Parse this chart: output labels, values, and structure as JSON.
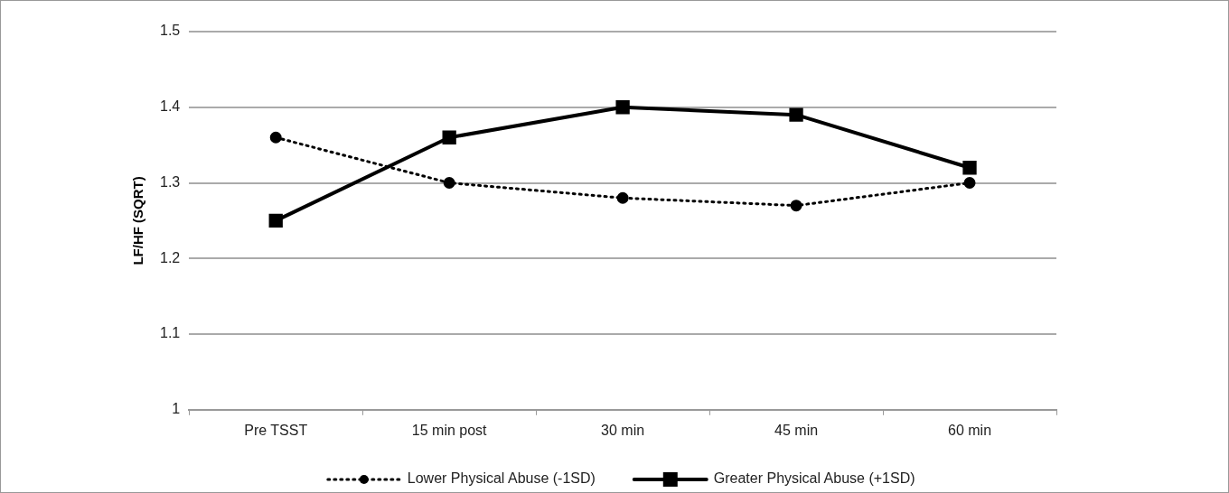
{
  "chart_data": {
    "type": "line",
    "ylabel": "LF/HF (SQRT)",
    "categories": [
      "Pre TSST",
      "15 min post",
      "30 min",
      "45 min",
      "60 min"
    ],
    "series": [
      {
        "name": "Lower Physical Abuse (-1SD)",
        "color": "#000000",
        "values": [
          1.36,
          1.3,
          1.28,
          1.27,
          1.3
        ],
        "marker": "circle",
        "line_style": "dotted"
      },
      {
        "name": "Greater Physical Abuse (+1SD)",
        "color": "#000000",
        "values": [
          1.25,
          1.36,
          1.4,
          1.39,
          1.32
        ],
        "marker": "square",
        "line_style": "solid"
      }
    ],
    "ylim": [
      1,
      1.5
    ],
    "yticks": [
      1,
      1.1,
      1.2,
      1.3,
      1.4,
      1.5
    ],
    "grid": "y",
    "legend": "bottom"
  }
}
